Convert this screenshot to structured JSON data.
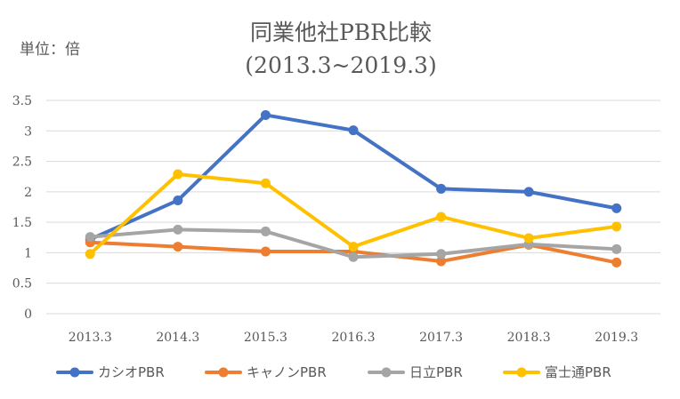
{
  "chart_data": {
    "type": "line",
    "title": "同業他社PBR比較",
    "subtitle": "(2013.3~2019.3)",
    "unit_label": "単位：倍",
    "xlabel": "",
    "ylabel": "",
    "categories": [
      "2013.3",
      "2014.3",
      "2015.3",
      "2016.3",
      "2017.3",
      "2018.3",
      "2019.3"
    ],
    "ylim": [
      0,
      3.5
    ],
    "yticks": [
      "0",
      "0.5",
      "1",
      "1.5",
      "2",
      "2.5",
      "3",
      "3.5"
    ],
    "grid": true,
    "legend_position": "bottom",
    "series": [
      {
        "name": "カシオPBR",
        "color": "#4472C4",
        "values": [
          1.22,
          1.86,
          3.26,
          3.01,
          2.05,
          2.0,
          1.73
        ]
      },
      {
        "name": "キャノンPBR",
        "color": "#ED7D31",
        "values": [
          1.17,
          1.1,
          1.02,
          1.02,
          0.86,
          1.13,
          0.84
        ]
      },
      {
        "name": "日立PBR",
        "color": "#A5A5A5",
        "values": [
          1.26,
          1.38,
          1.35,
          0.93,
          0.98,
          1.14,
          1.06
        ]
      },
      {
        "name": "富士通PBR",
        "color": "#FFC000",
        "values": [
          0.98,
          2.29,
          2.14,
          1.1,
          1.59,
          1.24,
          1.43
        ]
      }
    ]
  }
}
